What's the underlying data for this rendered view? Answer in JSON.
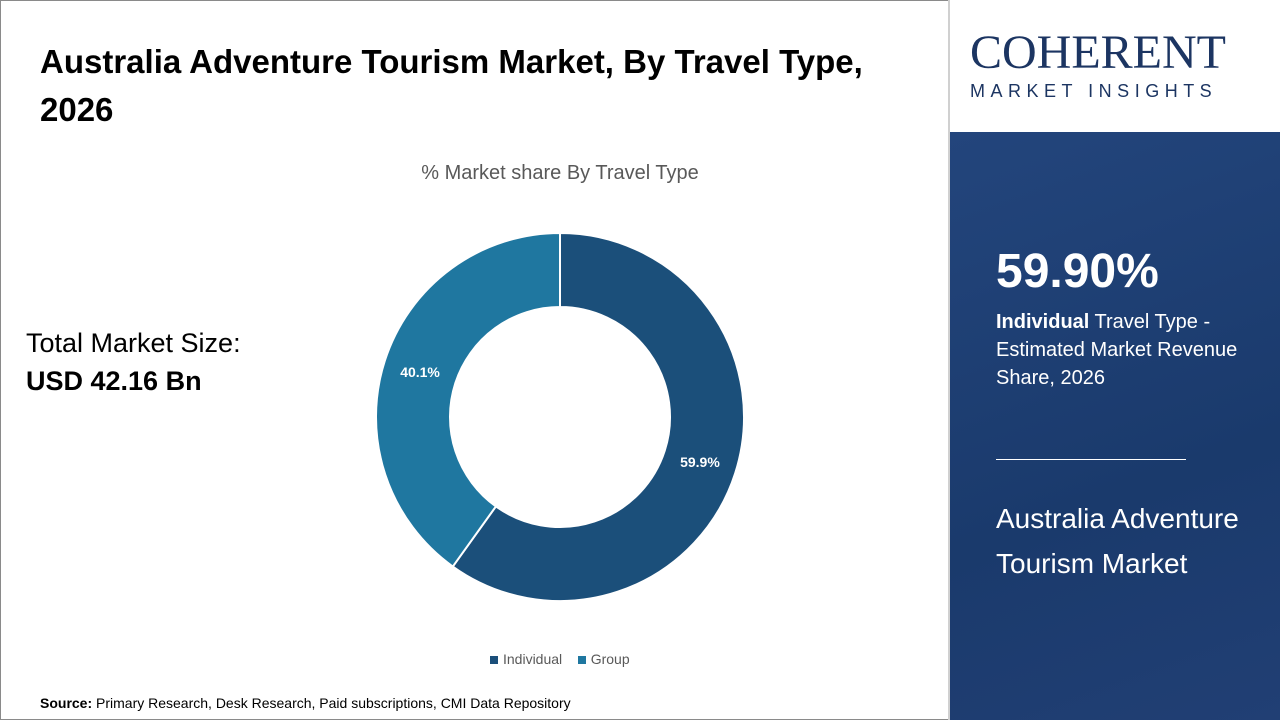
{
  "title": "Australia Adventure Tourism Market, By Travel Type, 2026",
  "total": {
    "label": "Total Market Size:",
    "value": "USD 42.16 Bn"
  },
  "source": {
    "label": "Source:",
    "text": "Primary Research, Desk Research, Paid subscriptions, CMI Data Repository"
  },
  "logo": {
    "line1": "COHERENT",
    "line2": "MARKET INSIGHTS"
  },
  "panel": {
    "highlight": "59.90%",
    "desc_bold": "Individual",
    "desc_rest": " Travel Type - Estimated Market Revenue Share, 2026",
    "market_name": "Australia Adventure Tourism Market"
  },
  "chart_data": {
    "type": "pie",
    "donut": true,
    "title": "% Market share By Travel Type",
    "categories": [
      "Individual",
      "Group"
    ],
    "values": [
      59.9,
      40.1
    ],
    "labels": [
      "59.9%",
      "40.1%"
    ],
    "colors": [
      "#1b4f7a",
      "#1f77a0"
    ],
    "legend": "bottom"
  }
}
